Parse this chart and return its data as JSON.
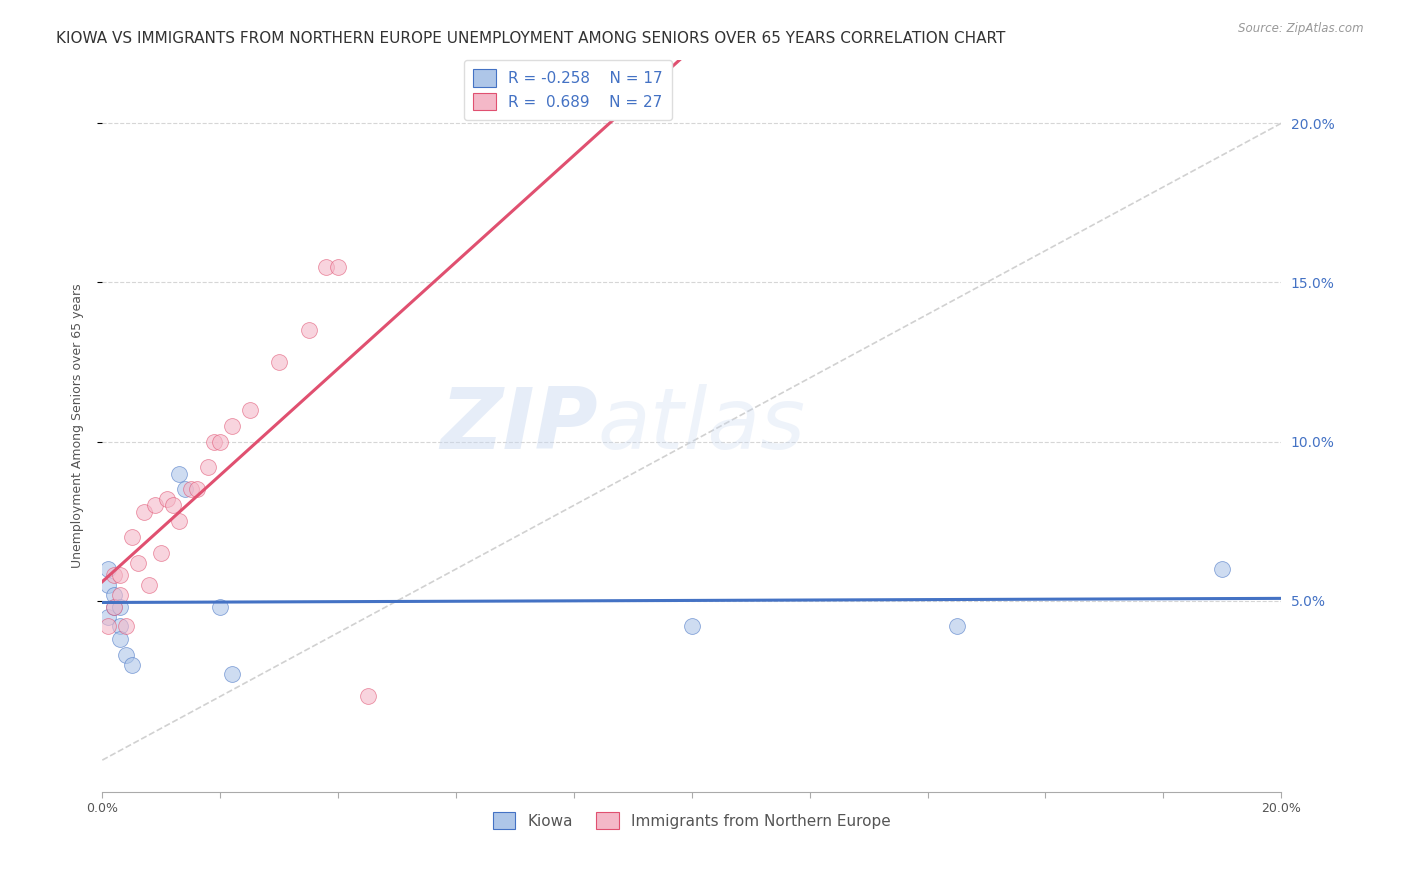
{
  "title": "KIOWA VS IMMIGRANTS FROM NORTHERN EUROPE UNEMPLOYMENT AMONG SENIORS OVER 65 YEARS CORRELATION CHART",
  "source": "Source: ZipAtlas.com",
  "ylabel": "Unemployment Among Seniors over 65 years",
  "xlim": [
    0,
    0.2
  ],
  "ylim": [
    -0.01,
    0.22
  ],
  "xticks": [
    0.0,
    0.02,
    0.04,
    0.06,
    0.08,
    0.1,
    0.12,
    0.14,
    0.16,
    0.18,
    0.2
  ],
  "xtick_labels_show": {
    "0.0": "0.0%",
    "0.20": "20.0%"
  },
  "yticks": [
    0.05,
    0.1,
    0.15,
    0.2
  ],
  "watermark": "ZIPatlas",
  "legend_entries": [
    {
      "label": "Kiowa",
      "R": -0.258,
      "N": 17,
      "color": "#aec6e8",
      "line_color": "#4472c4"
    },
    {
      "label": "Immigrants from Northern Europe",
      "R": 0.689,
      "N": 27,
      "color": "#f4b8c8",
      "line_color": "#e05070"
    }
  ],
  "kiowa_x": [
    0.001,
    0.001,
    0.001,
    0.002,
    0.002,
    0.003,
    0.003,
    0.003,
    0.004,
    0.005,
    0.013,
    0.014,
    0.02,
    0.022,
    0.1,
    0.145,
    0.19
  ],
  "kiowa_y": [
    0.045,
    0.055,
    0.06,
    0.048,
    0.052,
    0.042,
    0.048,
    0.038,
    0.033,
    0.03,
    0.09,
    0.085,
    0.048,
    0.027,
    0.042,
    0.042,
    0.06
  ],
  "immigrants_x": [
    0.001,
    0.002,
    0.002,
    0.003,
    0.003,
    0.004,
    0.005,
    0.006,
    0.007,
    0.008,
    0.009,
    0.01,
    0.011,
    0.012,
    0.013,
    0.015,
    0.016,
    0.018,
    0.019,
    0.02,
    0.022,
    0.025,
    0.03,
    0.035,
    0.038,
    0.04,
    0.045
  ],
  "immigrants_y": [
    0.042,
    0.048,
    0.058,
    0.052,
    0.058,
    0.042,
    0.07,
    0.062,
    0.078,
    0.055,
    0.08,
    0.065,
    0.082,
    0.08,
    0.075,
    0.085,
    0.085,
    0.092,
    0.1,
    0.1,
    0.105,
    0.11,
    0.125,
    0.135,
    0.155,
    0.155,
    0.02
  ],
  "dot_alpha": 0.6,
  "dot_size": 130,
  "grid_color": "#cccccc",
  "background_color": "#ffffff",
  "title_fontsize": 11,
  "axis_label_fontsize": 9,
  "tick_fontsize": 9,
  "legend_fontsize": 10,
  "right_ytick_labels": [
    "5.0%",
    "10.0%",
    "15.0%",
    "20.0%"
  ],
  "right_yticks": [
    0.05,
    0.1,
    0.15,
    0.2
  ]
}
